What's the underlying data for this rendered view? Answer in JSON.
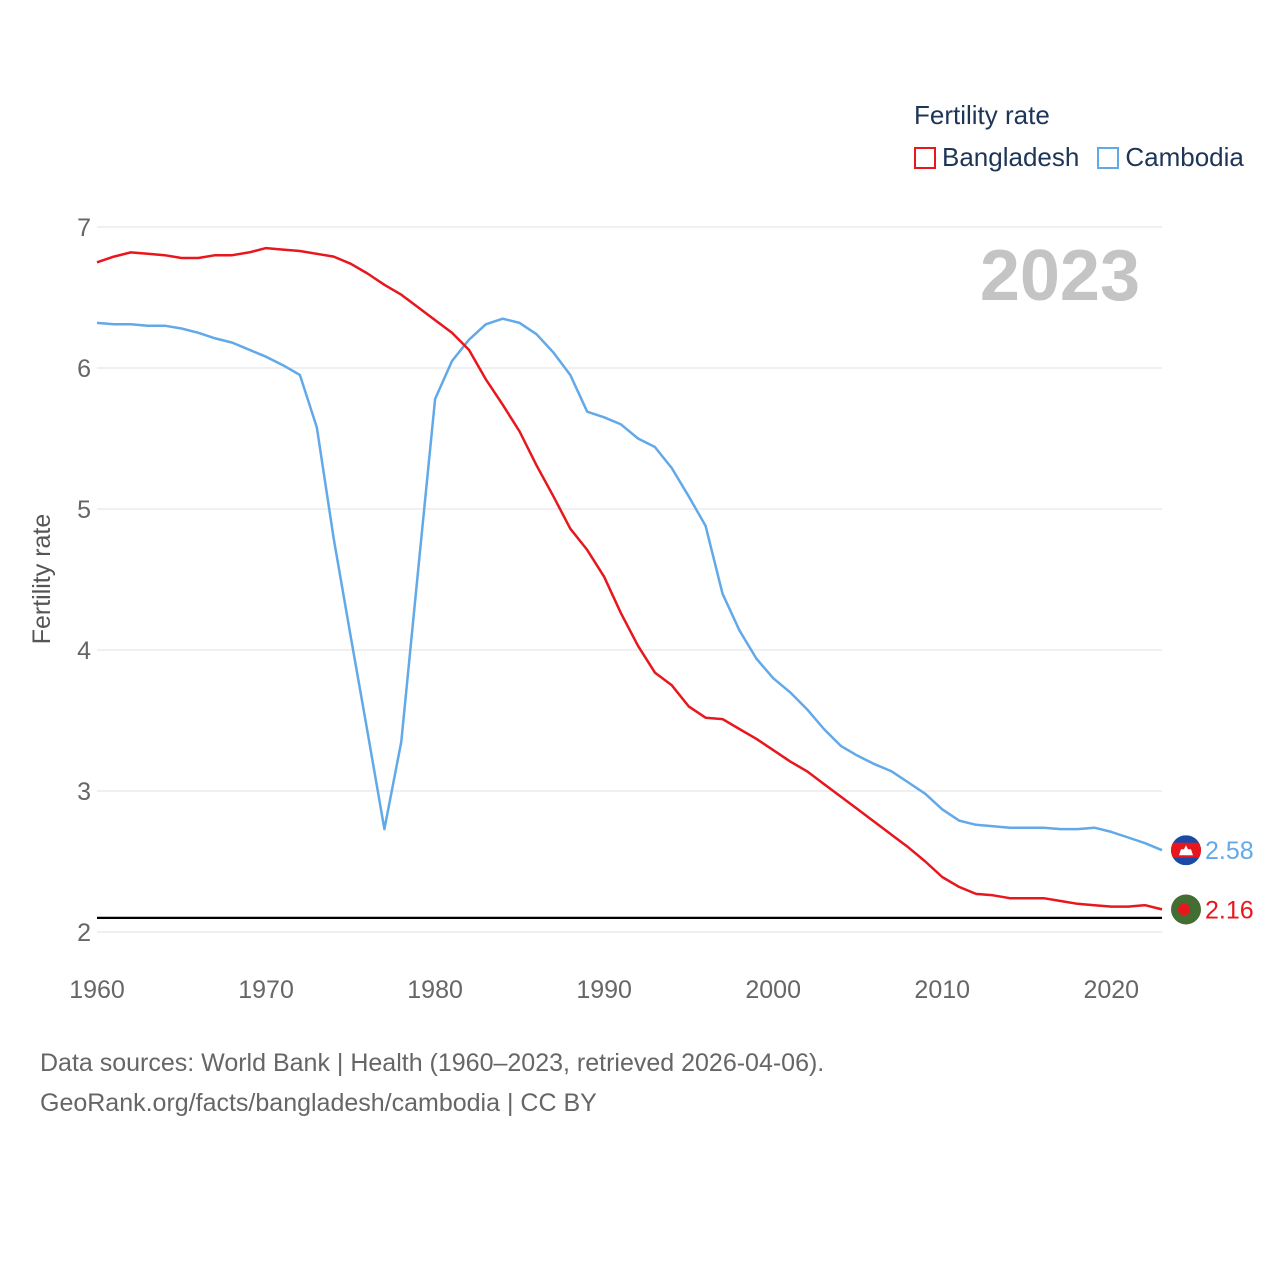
{
  "chart_data": {
    "type": "line",
    "title": "Fertility rate",
    "year_label": "2023",
    "ylabel": "Fertility rate",
    "xlabel": "",
    "xlim": [
      1960,
      2023
    ],
    "ylim": [
      2,
      7
    ],
    "x_ticks": [
      1960,
      1970,
      1980,
      1990,
      2000,
      2010,
      2020
    ],
    "y_ticks": [
      2,
      3,
      4,
      5,
      6,
      7
    ],
    "reference_line": 2.1,
    "grid": true,
    "legend_position": "top-right",
    "x": [
      1960,
      1961,
      1962,
      1963,
      1964,
      1965,
      1966,
      1967,
      1968,
      1969,
      1970,
      1971,
      1972,
      1973,
      1974,
      1975,
      1976,
      1977,
      1978,
      1979,
      1980,
      1981,
      1982,
      1983,
      1984,
      1985,
      1986,
      1987,
      1988,
      1989,
      1990,
      1991,
      1992,
      1993,
      1994,
      1995,
      1996,
      1997,
      1998,
      1999,
      2000,
      2001,
      2002,
      2003,
      2004,
      2005,
      2006,
      2007,
      2008,
      2009,
      2010,
      2011,
      2012,
      2013,
      2014,
      2015,
      2016,
      2017,
      2018,
      2019,
      2020,
      2021,
      2022,
      2023
    ],
    "series": [
      {
        "name": "Bangladesh",
        "color": "#e8161d",
        "end_label": "2.16",
        "values": [
          6.75,
          6.79,
          6.82,
          6.81,
          6.8,
          6.78,
          6.78,
          6.8,
          6.8,
          6.82,
          6.85,
          6.84,
          6.83,
          6.81,
          6.79,
          6.74,
          6.67,
          6.59,
          6.52,
          6.43,
          6.34,
          6.25,
          6.13,
          5.92,
          5.74,
          5.55,
          5.31,
          5.09,
          4.86,
          4.71,
          4.52,
          4.26,
          4.03,
          3.84,
          3.75,
          3.6,
          3.52,
          3.51,
          3.44,
          3.37,
          3.29,
          3.21,
          3.14,
          3.05,
          2.96,
          2.87,
          2.78,
          2.69,
          2.6,
          2.5,
          2.39,
          2.32,
          2.27,
          2.26,
          2.24,
          2.24,
          2.24,
          2.22,
          2.2,
          2.19,
          2.18,
          2.18,
          2.19,
          2.16
        ]
      },
      {
        "name": "Cambodia",
        "color": "#61a9e8",
        "end_label": "2.58",
        "values": [
          6.32,
          6.31,
          6.31,
          6.3,
          6.3,
          6.28,
          6.25,
          6.21,
          6.18,
          6.13,
          6.08,
          6.02,
          5.95,
          5.58,
          4.79,
          4.1,
          3.42,
          2.73,
          3.35,
          4.57,
          5.78,
          6.05,
          6.2,
          6.31,
          6.35,
          6.32,
          6.24,
          6.11,
          5.95,
          5.69,
          5.65,
          5.6,
          5.5,
          5.44,
          5.29,
          5.09,
          4.88,
          4.4,
          4.14,
          3.94,
          3.8,
          3.7,
          3.58,
          3.44,
          3.32,
          3.25,
          3.19,
          3.14,
          3.06,
          2.98,
          2.87,
          2.79,
          2.76,
          2.75,
          2.74,
          2.74,
          2.74,
          2.73,
          2.73,
          2.74,
          2.71,
          2.67,
          2.63,
          2.58
        ]
      }
    ]
  },
  "legend": {
    "title": "Fertility rate",
    "items": [
      "Bangladesh",
      "Cambodia"
    ]
  },
  "flags": {
    "bangladesh": {
      "field": "#436d33",
      "disc": "#e8161d"
    },
    "cambodia": {
      "top": "#1a4aa6",
      "middle": "#e8161d",
      "temple": "#ffffff"
    }
  },
  "footer": {
    "line1": "Data sources: World Bank | Health (1960–2023, retrieved 2026-04-06).",
    "line2": "GeoRank.org/facts/bangladesh/cambodia | CC BY"
  }
}
